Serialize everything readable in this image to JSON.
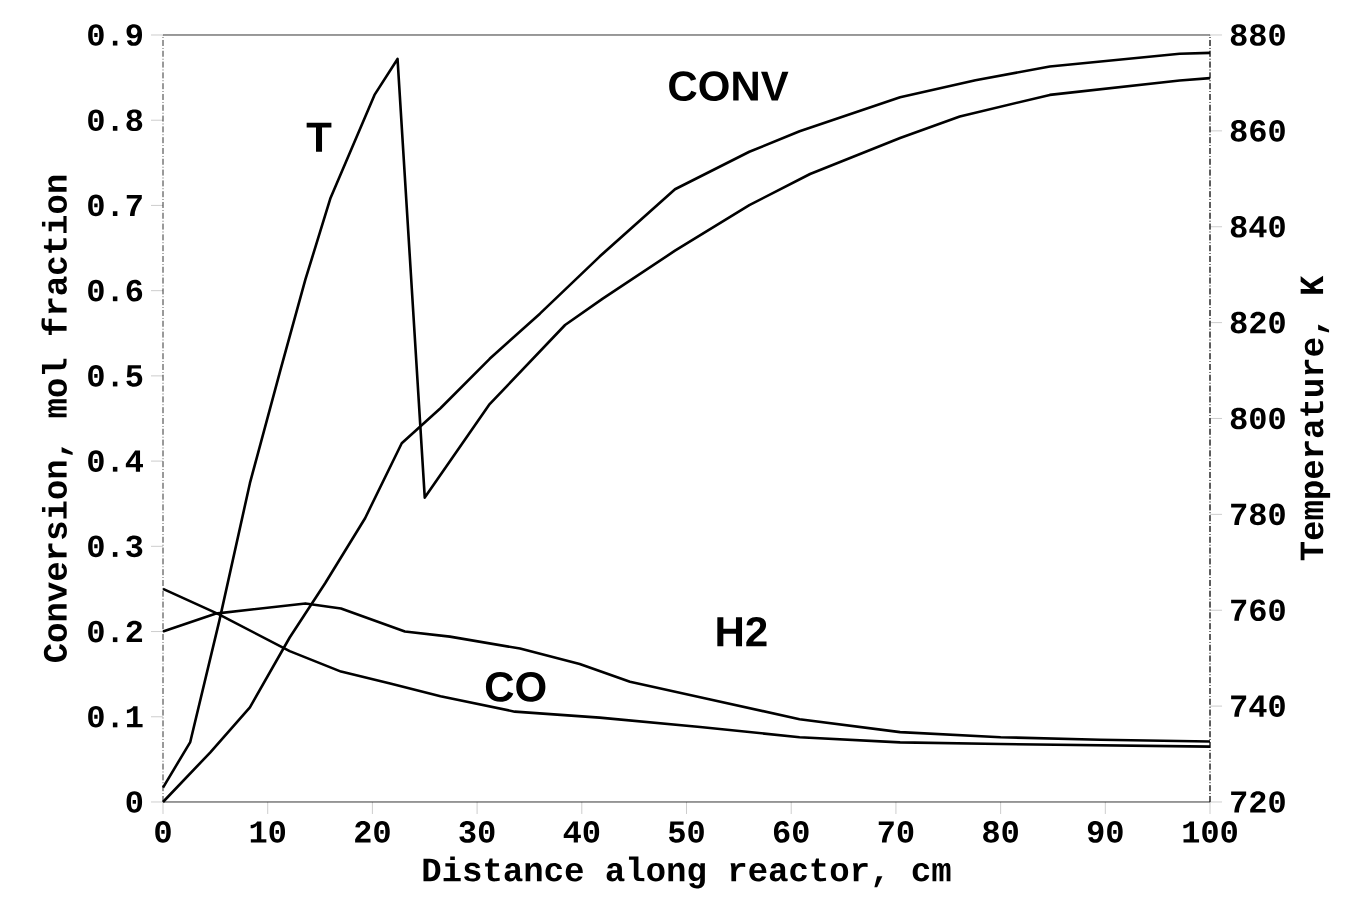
{
  "chart_data": {
    "type": "line",
    "xlabel": "Distance along reactor, cm",
    "ylabel": "Conversion, mol fraction",
    "y2label": "Temperature, K",
    "xlim": [
      0,
      100
    ],
    "xticks": [
      0,
      10,
      20,
      30,
      40,
      50,
      60,
      70,
      80,
      90,
      100
    ],
    "ylim": [
      0,
      0.9
    ],
    "yticks": [
      0,
      0.1,
      0.2,
      0.3,
      0.4,
      0.5,
      0.6,
      0.7,
      0.8,
      0.9
    ],
    "y2lim": [
      720,
      880
    ],
    "y2ticks": [
      720,
      740,
      760,
      780,
      800,
      820,
      840,
      860,
      880
    ],
    "series": [
      {
        "name": "T",
        "axis": "y2",
        "color": "#000000",
        "x": [
          0,
          2.6,
          5.4,
          8.3,
          11.2,
          13.6,
          16,
          20.2,
          22.4,
          25,
          31.2,
          38.4,
          42,
          48.9,
          56,
          61.8,
          70.4,
          76.1,
          84.7,
          97.1,
          100
        ],
        "values": [
          723,
          732.5,
          758,
          786.5,
          810,
          829,
          846,
          867.5,
          875,
          783.5,
          803,
          819.5,
          825,
          835,
          844.5,
          851,
          858.5,
          863,
          867.5,
          870.5,
          871
        ]
      },
      {
        "name": "CONV",
        "color": "#000000",
        "x": [
          0,
          4.5,
          8.3,
          12.1,
          15.5,
          19.3,
          22.8,
          26.5,
          31.2,
          36,
          41.7,
          48.9,
          56,
          60.8,
          70.4,
          77.6,
          84.7,
          97.1,
          100
        ],
        "values": [
          0,
          0.058,
          0.111,
          0.193,
          0.257,
          0.333,
          0.421,
          0.462,
          0.52,
          0.573,
          0.64,
          0.719,
          0.763,
          0.787,
          0.827,
          0.847,
          0.863,
          0.878,
          0.879
        ]
      },
      {
        "name": "H2",
        "color": "#000000",
        "x": [
          0,
          5,
          13.6,
          17,
          23.1,
          27.4,
          34.1,
          39.8,
          44.6,
          51.3,
          60.8,
          70.4,
          80,
          89.5,
          100
        ],
        "values": [
          0.2,
          0.221,
          0.233,
          0.227,
          0.2,
          0.194,
          0.18,
          0.162,
          0.141,
          0.123,
          0.097,
          0.082,
          0.076,
          0.073,
          0.071
        ]
      },
      {
        "name": "CO",
        "color": "#000000",
        "x": [
          0,
          5.2,
          12.1,
          17,
          21.7,
          26.5,
          33.6,
          41.7,
          51.3,
          60.8,
          70.4,
          80,
          100
        ],
        "values": [
          0.25,
          0.221,
          0.177,
          0.153,
          0.139,
          0.124,
          0.106,
          0.099,
          0.088,
          0.076,
          0.07,
          0.068,
          0.065
        ]
      }
    ]
  }
}
